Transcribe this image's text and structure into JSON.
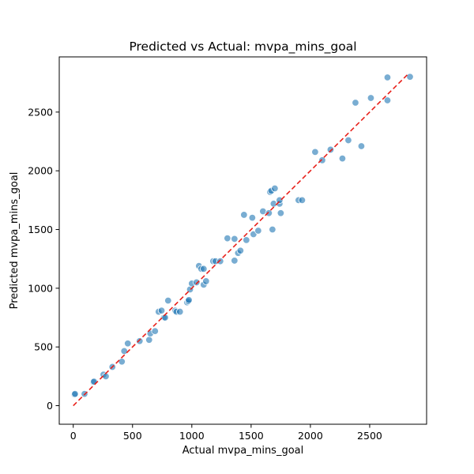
{
  "chart_data": {
    "type": "scatter",
    "title": "Predicted vs Actual: mvpa_mins_goal",
    "xlabel": "Actual mvpa_mins_goal",
    "ylabel": "Predicted mvpa_mins_goal",
    "xlim": [
      -118,
      2980
    ],
    "ylim": [
      -158,
      2970
    ],
    "xticks": [
      0,
      500,
      1000,
      1500,
      2000,
      2500
    ],
    "yticks": [
      0,
      500,
      1000,
      1500,
      2000,
      2500
    ],
    "xtick_labels": [
      "0",
      "500",
      "1000",
      "1500",
      "2000",
      "2500"
    ],
    "ytick_labels": [
      "0",
      "500",
      "1000",
      "1500",
      "2000",
      "2500"
    ],
    "grid": false,
    "reference_line": {
      "style": "dashed",
      "color": "#e8201a",
      "from": [
        0,
        0
      ],
      "to": [
        2830,
        2830
      ]
    },
    "point_color": "#1f77b4",
    "points": [
      [
        10,
        95
      ],
      [
        15,
        100
      ],
      [
        95,
        100
      ],
      [
        170,
        200
      ],
      [
        175,
        205
      ],
      [
        255,
        265
      ],
      [
        275,
        250
      ],
      [
        330,
        330
      ],
      [
        410,
        375
      ],
      [
        430,
        465
      ],
      [
        460,
        530
      ],
      [
        560,
        550
      ],
      [
        640,
        560
      ],
      [
        650,
        615
      ],
      [
        690,
        635
      ],
      [
        720,
        800
      ],
      [
        745,
        810
      ],
      [
        765,
        750
      ],
      [
        775,
        750
      ],
      [
        800,
        895
      ],
      [
        860,
        810
      ],
      [
        870,
        800
      ],
      [
        900,
        800
      ],
      [
        960,
        880
      ],
      [
        970,
        890
      ],
      [
        975,
        900
      ],
      [
        985,
        990
      ],
      [
        1000,
        1040
      ],
      [
        1040,
        1050
      ],
      [
        1060,
        1190
      ],
      [
        1080,
        1165
      ],
      [
        1100,
        1030
      ],
      [
        1100,
        1165
      ],
      [
        1120,
        1060
      ],
      [
        1180,
        1230
      ],
      [
        1200,
        1230
      ],
      [
        1240,
        1230
      ],
      [
        1300,
        1425
      ],
      [
        1360,
        1235
      ],
      [
        1360,
        1420
      ],
      [
        1390,
        1300
      ],
      [
        1410,
        1320
      ],
      [
        1440,
        1625
      ],
      [
        1460,
        1410
      ],
      [
        1510,
        1600
      ],
      [
        1520,
        1460
      ],
      [
        1560,
        1490
      ],
      [
        1600,
        1655
      ],
      [
        1650,
        1640
      ],
      [
        1660,
        1820
      ],
      [
        1670,
        1830
      ],
      [
        1680,
        1500
      ],
      [
        1690,
        1720
      ],
      [
        1700,
        1850
      ],
      [
        1740,
        1720
      ],
      [
        1740,
        1750
      ],
      [
        1750,
        1640
      ],
      [
        1900,
        1750
      ],
      [
        1930,
        1750
      ],
      [
        2040,
        2160
      ],
      [
        2100,
        2090
      ],
      [
        2170,
        2180
      ],
      [
        2270,
        2105
      ],
      [
        2320,
        2260
      ],
      [
        2380,
        2580
      ],
      [
        2430,
        2210
      ],
      [
        2510,
        2620
      ],
      [
        2650,
        2600
      ],
      [
        2650,
        2795
      ],
      [
        2840,
        2800
      ]
    ]
  }
}
